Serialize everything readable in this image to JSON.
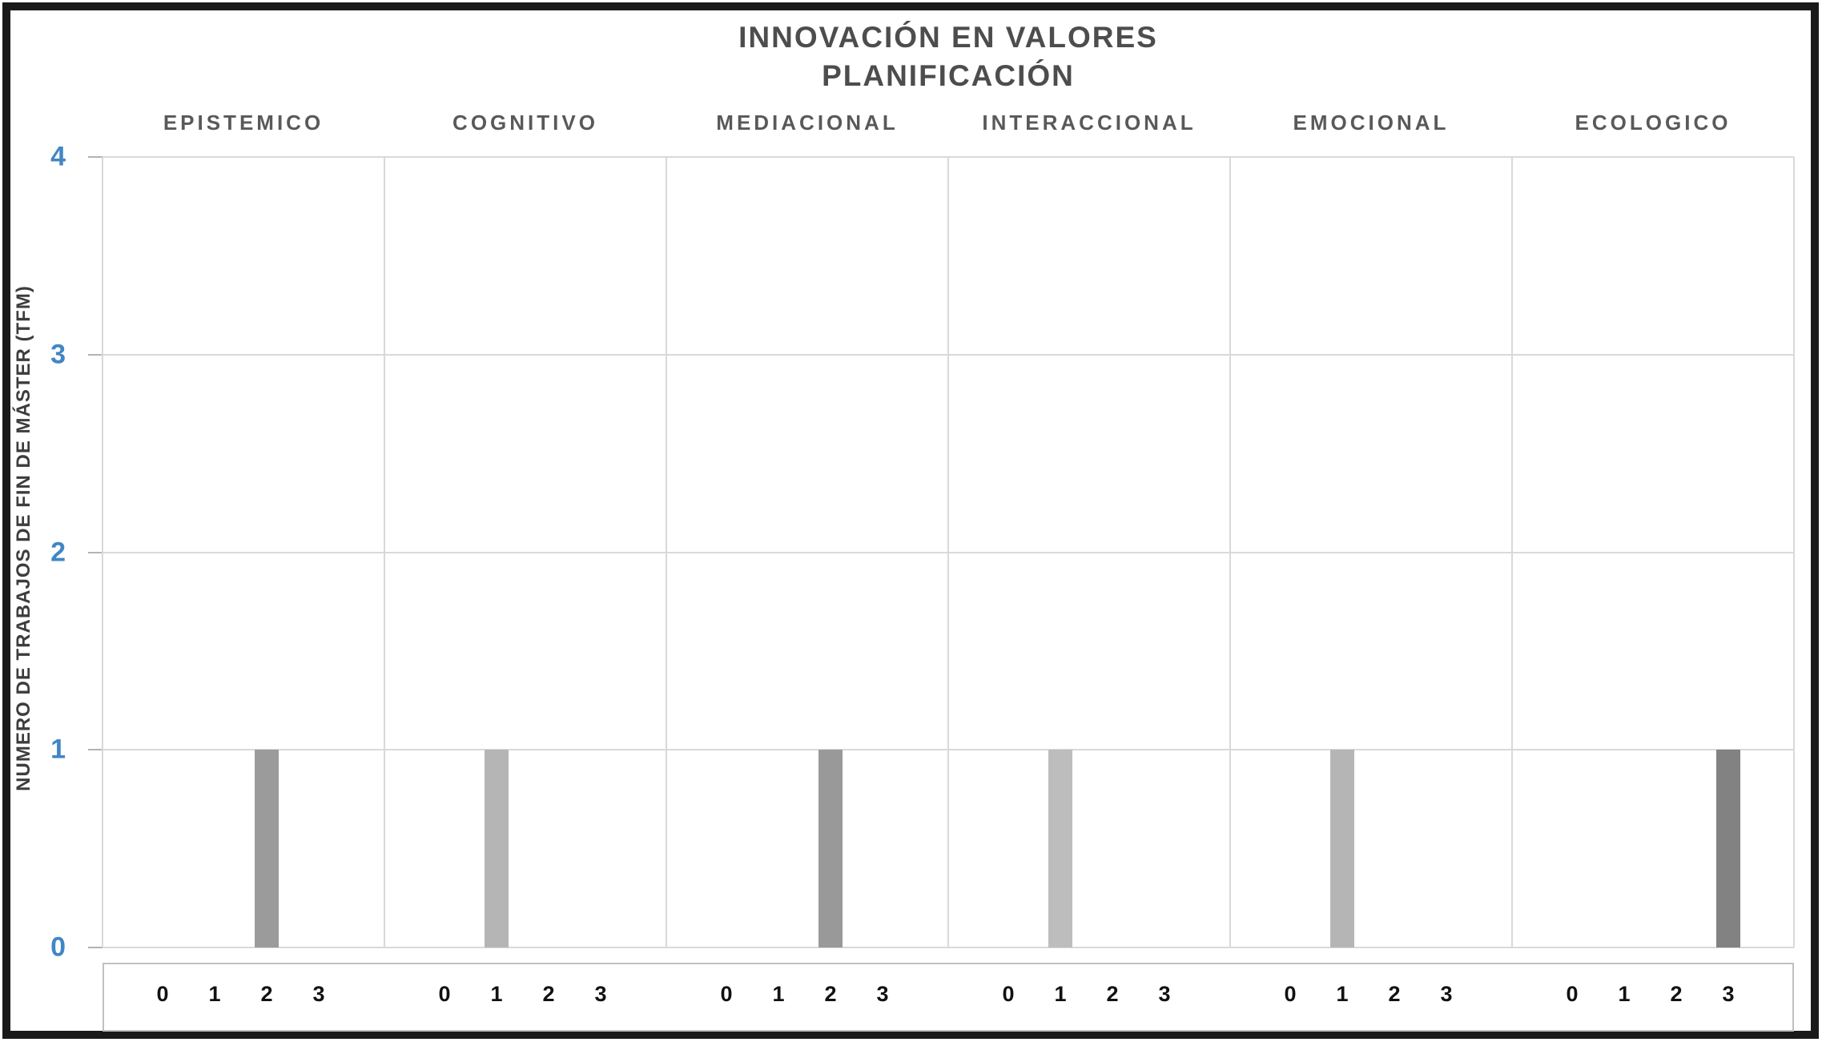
{
  "title": {
    "line1": "INNOVACIÓN EN VALORES",
    "line2": "PLANIFICACIÓN"
  },
  "y_axis": {
    "label": "NUMERO DE TRABAJOS DE FIN DE MÁSTER (TFM)",
    "tick_labels": [
      "4",
      "3",
      "2",
      "1",
      "0"
    ]
  },
  "colors": {
    "axis_tick_blue": "#4186c5",
    "gridline_gray": "#d9d9d9",
    "title_gray": "#4d4d4d",
    "category_gray": "#595959",
    "frame_black": "#1a1a1a",
    "bar_medium_gray": "#9b9b9b",
    "bar_light_gray": "#b5b5b5",
    "bar_dark_gray": "#828282"
  },
  "chart_data": {
    "type": "bar",
    "title": "INNOVACIÓN EN VALORES",
    "subtitle": "PLANIFICACIÓN",
    "ylabel": "NUMERO DE TRABAJOS DE FIN DE MÁSTER (TFM)",
    "ylim": [
      0,
      4
    ],
    "y_ticks": [
      0,
      1,
      2,
      3,
      4
    ],
    "grid": true,
    "legend": false,
    "x_sublabels": [
      "0",
      "1",
      "2",
      "3"
    ],
    "panels": [
      {
        "category": "EPISTEMICO",
        "values": [
          0,
          0,
          1,
          0
        ],
        "bar_color": "#9b9b9b"
      },
      {
        "category": "COGNITIVO",
        "values": [
          0,
          1,
          0,
          0
        ],
        "bar_color": "#b5b5b5"
      },
      {
        "category": "MEDIACIONAL",
        "values": [
          0,
          0,
          1,
          0
        ],
        "bar_color": "#999999"
      },
      {
        "category": "INTERACCIONAL",
        "values": [
          0,
          1,
          0,
          0
        ],
        "bar_color": "#bdbdbd"
      },
      {
        "category": "EMOCIONAL",
        "values": [
          0,
          1,
          0,
          0
        ],
        "bar_color": "#b5b5b5"
      },
      {
        "category": "ECOLOGICO",
        "values": [
          0,
          0,
          0,
          1
        ],
        "bar_color": "#828282"
      }
    ]
  }
}
